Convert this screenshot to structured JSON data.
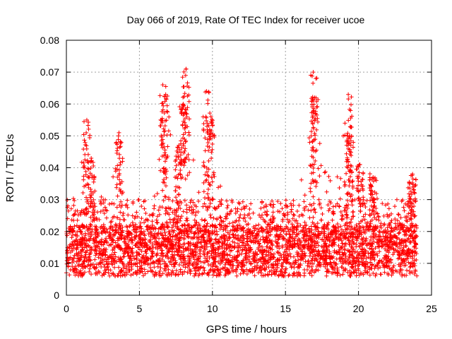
{
  "chart_data": {
    "type": "scatter",
    "title": "Day 066 of 2019, Rate Of TEC Index for receiver ucoe",
    "xlabel": "GPS time / hours",
    "ylabel": "ROTI / TECUs",
    "xlim": [
      0,
      25
    ],
    "ylim": [
      0,
      0.08
    ],
    "xticks": [
      0,
      5,
      10,
      15,
      20,
      25
    ],
    "yticks": [
      0,
      0.01,
      0.02,
      0.03,
      0.04,
      0.05,
      0.06,
      0.07,
      0.08
    ],
    "xtick_labels": [
      "0",
      "5",
      "10",
      "15",
      "20",
      "25"
    ],
    "ytick_labels": [
      "0",
      "0.01",
      "0.02",
      "0.03",
      "0.04",
      "0.05",
      "0.06",
      "0.07",
      "0.08"
    ],
    "grid": true,
    "marker": "plus",
    "series": [
      {
        "name": "ROTI",
        "color": "#ff0000",
        "x_range": [
          0,
          24
        ],
        "typical_range": [
          0.005,
          0.03
        ],
        "peaks": [
          {
            "x": 1.4,
            "y": 0.055
          },
          {
            "x": 1.7,
            "y": 0.043
          },
          {
            "x": 3.6,
            "y": 0.051
          },
          {
            "x": 6.6,
            "y": 0.066
          },
          {
            "x": 6.8,
            "y": 0.063
          },
          {
            "x": 7.7,
            "y": 0.047
          },
          {
            "x": 8.0,
            "y": 0.06
          },
          {
            "x": 8.2,
            "y": 0.071
          },
          {
            "x": 9.6,
            "y": 0.064
          },
          {
            "x": 9.9,
            "y": 0.056
          },
          {
            "x": 16.9,
            "y": 0.07
          },
          {
            "x": 17.0,
            "y": 0.062
          },
          {
            "x": 19.3,
            "y": 0.063
          },
          {
            "x": 19.4,
            "y": 0.05
          },
          {
            "x": 20.1,
            "y": 0.041
          },
          {
            "x": 21.0,
            "y": 0.037
          },
          {
            "x": 23.7,
            "y": 0.038
          }
        ]
      }
    ]
  }
}
